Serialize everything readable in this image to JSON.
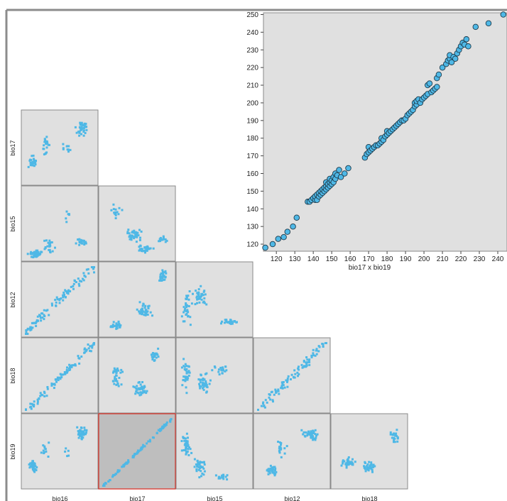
{
  "chart_data": [
    {
      "type": "scatter-matrix",
      "variables": [
        "bio16",
        "bio17",
        "bio15",
        "bio12",
        "bio18",
        "bio19"
      ],
      "column_labels": [
        "bio16",
        "bio17",
        "bio15",
        "bio12",
        "bio18"
      ],
      "row_labels": [
        "bio17",
        "bio15",
        "bio12",
        "bio18",
        "bio19"
      ],
      "selected_cell": {
        "x": "bio17",
        "y": "bio19"
      },
      "point_color": "#4fb8e6",
      "selected_cell_border_color": "#d9362c"
    },
    {
      "type": "scatter",
      "xlabel": "bio17 x bio19",
      "ylabel": "",
      "xlim": [
        113,
        245
      ],
      "ylim": [
        116,
        251
      ],
      "x_ticks": [
        120,
        130,
        140,
        150,
        160,
        170,
        180,
        190,
        200,
        210,
        220,
        230,
        240
      ],
      "y_ticks": [
        120,
        130,
        140,
        150,
        160,
        170,
        180,
        190,
        200,
        210,
        220,
        230,
        240,
        250
      ],
      "point_color": "#4fb8e6",
      "points": [
        [
          114,
          118
        ],
        [
          118,
          120
        ],
        [
          121,
          123
        ],
        [
          124,
          124
        ],
        [
          126,
          127
        ],
        [
          129,
          130
        ],
        [
          131,
          135
        ],
        [
          137,
          144
        ],
        [
          138,
          144
        ],
        [
          139,
          145
        ],
        [
          140,
          146
        ],
        [
          141,
          145
        ],
        [
          141,
          147
        ],
        [
          142,
          145
        ],
        [
          142,
          148
        ],
        [
          143,
          147
        ],
        [
          143,
          149
        ],
        [
          144,
          148
        ],
        [
          144,
          150
        ],
        [
          145,
          149
        ],
        [
          145,
          151
        ],
        [
          146,
          150
        ],
        [
          146,
          152
        ],
        [
          147,
          151
        ],
        [
          147,
          153
        ],
        [
          147,
          155
        ],
        [
          148,
          152
        ],
        [
          148,
          154
        ],
        [
          149,
          153
        ],
        [
          149,
          155
        ],
        [
          149,
          157
        ],
        [
          150,
          154
        ],
        [
          150,
          156
        ],
        [
          151,
          155
        ],
        [
          151,
          158
        ],
        [
          152,
          157
        ],
        [
          152,
          160
        ],
        [
          153,
          159
        ],
        [
          154,
          162
        ],
        [
          155,
          158
        ],
        [
          157,
          160
        ],
        [
          159,
          163
        ],
        [
          168,
          169
        ],
        [
          169,
          171
        ],
        [
          170,
          172
        ],
        [
          170,
          175
        ],
        [
          171,
          173
        ],
        [
          172,
          174
        ],
        [
          173,
          175
        ],
        [
          174,
          176
        ],
        [
          175,
          176
        ],
        [
          176,
          177
        ],
        [
          177,
          178
        ],
        [
          177,
          180
        ],
        [
          178,
          179
        ],
        [
          179,
          181
        ],
        [
          180,
          182
        ],
        [
          180,
          184
        ],
        [
          181,
          183
        ],
        [
          182,
          184
        ],
        [
          183,
          185
        ],
        [
          184,
          186
        ],
        [
          185,
          187
        ],
        [
          186,
          188
        ],
        [
          187,
          189
        ],
        [
          188,
          190
        ],
        [
          189,
          190
        ],
        [
          190,
          191
        ],
        [
          191,
          193
        ],
        [
          192,
          194
        ],
        [
          193,
          195
        ],
        [
          194,
          196
        ],
        [
          195,
          198
        ],
        [
          195,
          200
        ],
        [
          196,
          199
        ],
        [
          196,
          201
        ],
        [
          197,
          202
        ],
        [
          198,
          200
        ],
        [
          199,
          202
        ],
        [
          200,
          203
        ],
        [
          201,
          204
        ],
        [
          202,
          205
        ],
        [
          202,
          210
        ],
        [
          203,
          211
        ],
        [
          204,
          206
        ],
        [
          205,
          207
        ],
        [
          206,
          208
        ],
        [
          207,
          209
        ],
        [
          207,
          214
        ],
        [
          208,
          216
        ],
        [
          210,
          220
        ],
        [
          212,
          222
        ],
        [
          213,
          224
        ],
        [
          214,
          225
        ],
        [
          214,
          227
        ],
        [
          215,
          223
        ],
        [
          216,
          226
        ],
        [
          217,
          225
        ],
        [
          218,
          228
        ],
        [
          219,
          230
        ],
        [
          220,
          232
        ],
        [
          221,
          234
        ],
        [
          222,
          233
        ],
        [
          223,
          236
        ],
        [
          224,
          232
        ],
        [
          228,
          243
        ],
        [
          235,
          245
        ],
        [
          243,
          250
        ]
      ]
    }
  ]
}
